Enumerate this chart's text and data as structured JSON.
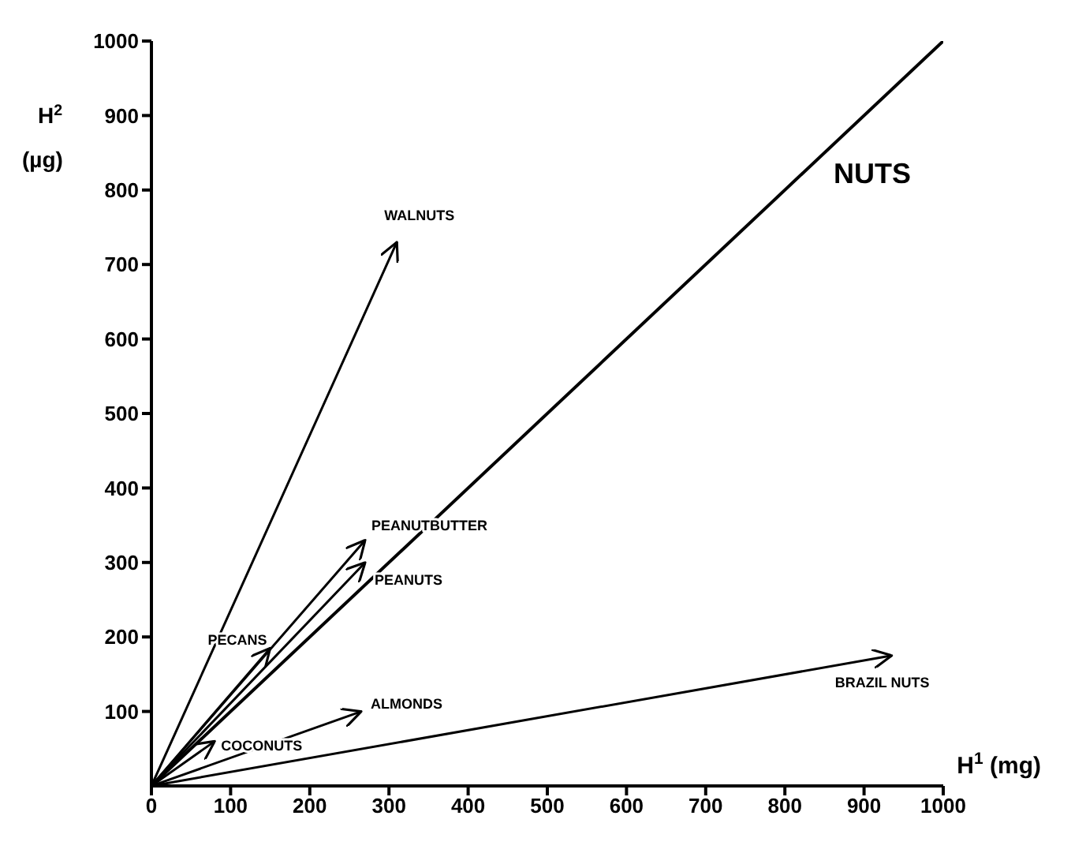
{
  "chart_data": {
    "type": "line",
    "title": "NUTS",
    "xlabel": "H$^{1}$ (mg)",
    "ylabel": "H$^{2}$ (µg)",
    "xlim": [
      0,
      1000
    ],
    "ylim": [
      0,
      1000
    ],
    "xticks": [
      0,
      100,
      200,
      300,
      400,
      500,
      600,
      700,
      800,
      900,
      1000
    ],
    "yticks": [
      100,
      200,
      300,
      400,
      500,
      600,
      700,
      800,
      900,
      1000
    ],
    "grid": false,
    "legend": false,
    "marker": "none",
    "line_style": "solid",
    "series": [
      {
        "color": "#000000",
        "x": [
          0,
          1000
        ],
        "values": [
          0,
          1000
        ]
      },
      {
        "name": "WALNUTS",
        "color": "#000000",
        "x": [
          0,
          310
        ],
        "values": [
          0,
          730
        ]
      },
      {
        "name": "PEANUTBUTTER",
        "color": "#000000",
        "x": [
          0,
          270
        ],
        "values": [
          0,
          330
        ]
      },
      {
        "name": "PEANUTS",
        "color": "#000000",
        "x": [
          0,
          270
        ],
        "values": [
          0,
          300
        ]
      },
      {
        "name": "PECANS",
        "color": "#000000",
        "x": [
          0,
          150
        ],
        "values": [
          0,
          185
        ]
      },
      {
        "name": "ALMONDS",
        "color": "#000000",
        "x": [
          0,
          265
        ],
        "values": [
          0,
          100
        ]
      },
      {
        "name": "COCONUTS",
        "color": "#000000",
        "x": [
          0,
          80
        ],
        "values": [
          0,
          60
        ]
      },
      {
        "name": "BRAZIL NUTS",
        "color": "#000000",
        "x": [
          0,
          935
        ],
        "values": [
          0,
          175
        ]
      }
    ]
  }
}
